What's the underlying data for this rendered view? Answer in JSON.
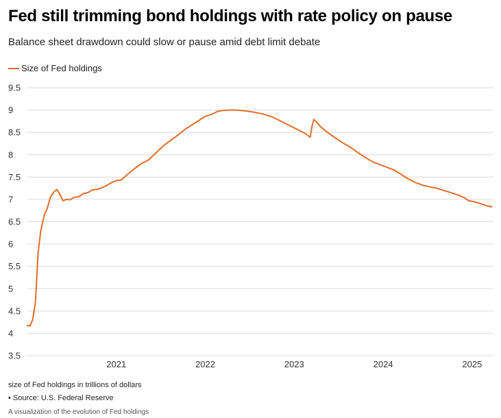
{
  "chart_data": {
    "type": "line",
    "title": "Fed still trimming bond holdings with rate policy on pause",
    "subtitle": "Balance sheet drawdown could slow or pause amid debt limit debate",
    "xlabel": "",
    "ylabel": "",
    "ylim": [
      3.5,
      9.5
    ],
    "yticks": [
      "3.5",
      "4",
      "4.5",
      "5",
      "5.5",
      "6",
      "6.5",
      "7",
      "7.5",
      "8",
      "8.5",
      "9",
      "9.5"
    ],
    "xticks": [
      {
        "label": "2021",
        "x": 2021.0
      },
      {
        "label": "2022",
        "x": 2022.0
      },
      {
        "label": "2023",
        "x": 2023.0
      },
      {
        "label": "2024",
        "x": 2024.0
      },
      {
        "label": "2025",
        "x": 2025.0
      }
    ],
    "grid": true,
    "legend_position": "top-left",
    "series": [
      {
        "name": "Size of Fed holdings",
        "color": "#e36c27",
        "points": [
          [
            2020.0,
            4.17
          ],
          [
            2020.03,
            4.17
          ],
          [
            2020.06,
            4.31
          ],
          [
            2020.09,
            4.7
          ],
          [
            2020.12,
            5.8
          ],
          [
            2020.15,
            6.3
          ],
          [
            2020.19,
            6.65
          ],
          [
            2020.22,
            6.78
          ],
          [
            2020.26,
            7.05
          ],
          [
            2020.3,
            7.17
          ],
          [
            2020.33,
            7.22
          ],
          [
            2020.36,
            7.13
          ],
          [
            2020.38,
            7.05
          ],
          [
            2020.4,
            6.97
          ],
          [
            2020.44,
            7.0
          ],
          [
            2020.48,
            6.99
          ],
          [
            2020.52,
            7.04
          ],
          [
            2020.58,
            7.06
          ],
          [
            2020.63,
            7.13
          ],
          [
            2020.68,
            7.15
          ],
          [
            2020.73,
            7.21
          ],
          [
            2020.8,
            7.23
          ],
          [
            2020.88,
            7.3
          ],
          [
            2020.95,
            7.38
          ],
          [
            2021.0,
            7.42
          ],
          [
            2021.05,
            7.43
          ],
          [
            2021.12,
            7.55
          ],
          [
            2021.2,
            7.68
          ],
          [
            2021.28,
            7.8
          ],
          [
            2021.36,
            7.88
          ],
          [
            2021.45,
            8.05
          ],
          [
            2021.53,
            8.2
          ],
          [
            2021.61,
            8.32
          ],
          [
            2021.7,
            8.45
          ],
          [
            2021.78,
            8.58
          ],
          [
            2021.86,
            8.68
          ],
          [
            2021.93,
            8.77
          ],
          [
            2022.0,
            8.86
          ],
          [
            2022.07,
            8.9
          ],
          [
            2022.14,
            8.97
          ],
          [
            2022.2,
            8.99
          ],
          [
            2022.28,
            9.0
          ],
          [
            2022.35,
            9.0
          ],
          [
            2022.45,
            8.98
          ],
          [
            2022.55,
            8.95
          ],
          [
            2022.65,
            8.91
          ],
          [
            2022.75,
            8.85
          ],
          [
            2022.85,
            8.75
          ],
          [
            2022.95,
            8.65
          ],
          [
            2023.03,
            8.57
          ],
          [
            2023.12,
            8.48
          ],
          [
            2023.18,
            8.39
          ],
          [
            2023.2,
            8.64
          ],
          [
            2023.22,
            8.79
          ],
          [
            2023.25,
            8.73
          ],
          [
            2023.3,
            8.62
          ],
          [
            2023.38,
            8.49
          ],
          [
            2023.46,
            8.38
          ],
          [
            2023.55,
            8.26
          ],
          [
            2023.63,
            8.17
          ],
          [
            2023.72,
            8.04
          ],
          [
            2023.8,
            7.94
          ],
          [
            2023.88,
            7.84
          ],
          [
            2023.96,
            7.78
          ],
          [
            2024.04,
            7.72
          ],
          [
            2024.12,
            7.66
          ],
          [
            2024.2,
            7.56
          ],
          [
            2024.28,
            7.46
          ],
          [
            2024.36,
            7.38
          ],
          [
            2024.44,
            7.32
          ],
          [
            2024.52,
            7.28
          ],
          [
            2024.6,
            7.25
          ],
          [
            2024.68,
            7.2
          ],
          [
            2024.76,
            7.15
          ],
          [
            2024.84,
            7.1
          ],
          [
            2024.92,
            7.03
          ],
          [
            2024.96,
            6.97
          ],
          [
            2025.04,
            6.94
          ],
          [
            2025.1,
            6.9
          ],
          [
            2025.16,
            6.86
          ],
          [
            2025.22,
            6.83
          ]
        ]
      }
    ]
  },
  "footer": {
    "note": "size of Fed holdings in trillions of dollars",
    "source": "• Source: U.S. Federal Reserve",
    "description": "A visualization of the evolution of Fed holdings"
  },
  "colors": {
    "line": "#e36c27",
    "grid": "#d9d9d9",
    "axis_text": "#333333"
  }
}
